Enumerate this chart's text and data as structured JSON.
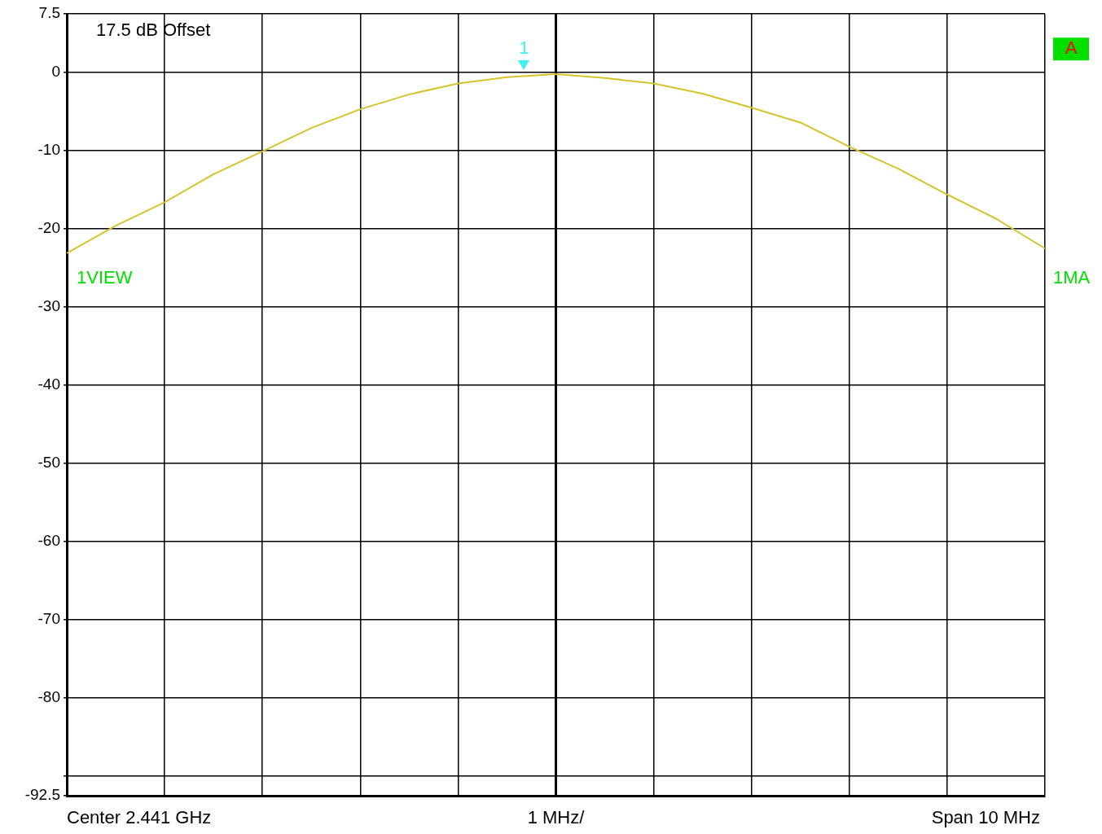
{
  "chart_data": {
    "type": "line",
    "categories": [
      null,
      null,
      null,
      null,
      null,
      null,
      null,
      null,
      null,
      null,
      null,
      null,
      null,
      null,
      null,
      null,
      null,
      null,
      null,
      null,
      null
    ],
    "series": [
      {
        "color": "#d4c42c",
        "values": [
          -23.1,
          -19.6,
          -16.6,
          -13.0,
          -10.1,
          -7.1,
          -4.7,
          -2.8,
          -1.4,
          -0.6,
          -0.2,
          -0.7,
          -1.4,
          -2.7,
          -4.5,
          -6.4,
          -9.5,
          -12.3,
          -15.6,
          -18.7,
          -22.5
        ]
      }
    ],
    "ylim": [
      -92.5,
      7.5
    ],
    "yticks": [
      7.5,
      0,
      -10,
      -20,
      -30,
      -40,
      -50,
      -60,
      -70,
      -80,
      {
        "value": -90,
        "label": null
      },
      -92.5
    ],
    "tick_labels": "y",
    "grid": true,
    "legend": false,
    "annotations": [
      "17.5 dB Offset",
      "1VIEW",
      "1MA",
      "A",
      "Center 2.441 GHz",
      "1 MHz/",
      "Span 10 MHz",
      "1"
    ]
  }
}
